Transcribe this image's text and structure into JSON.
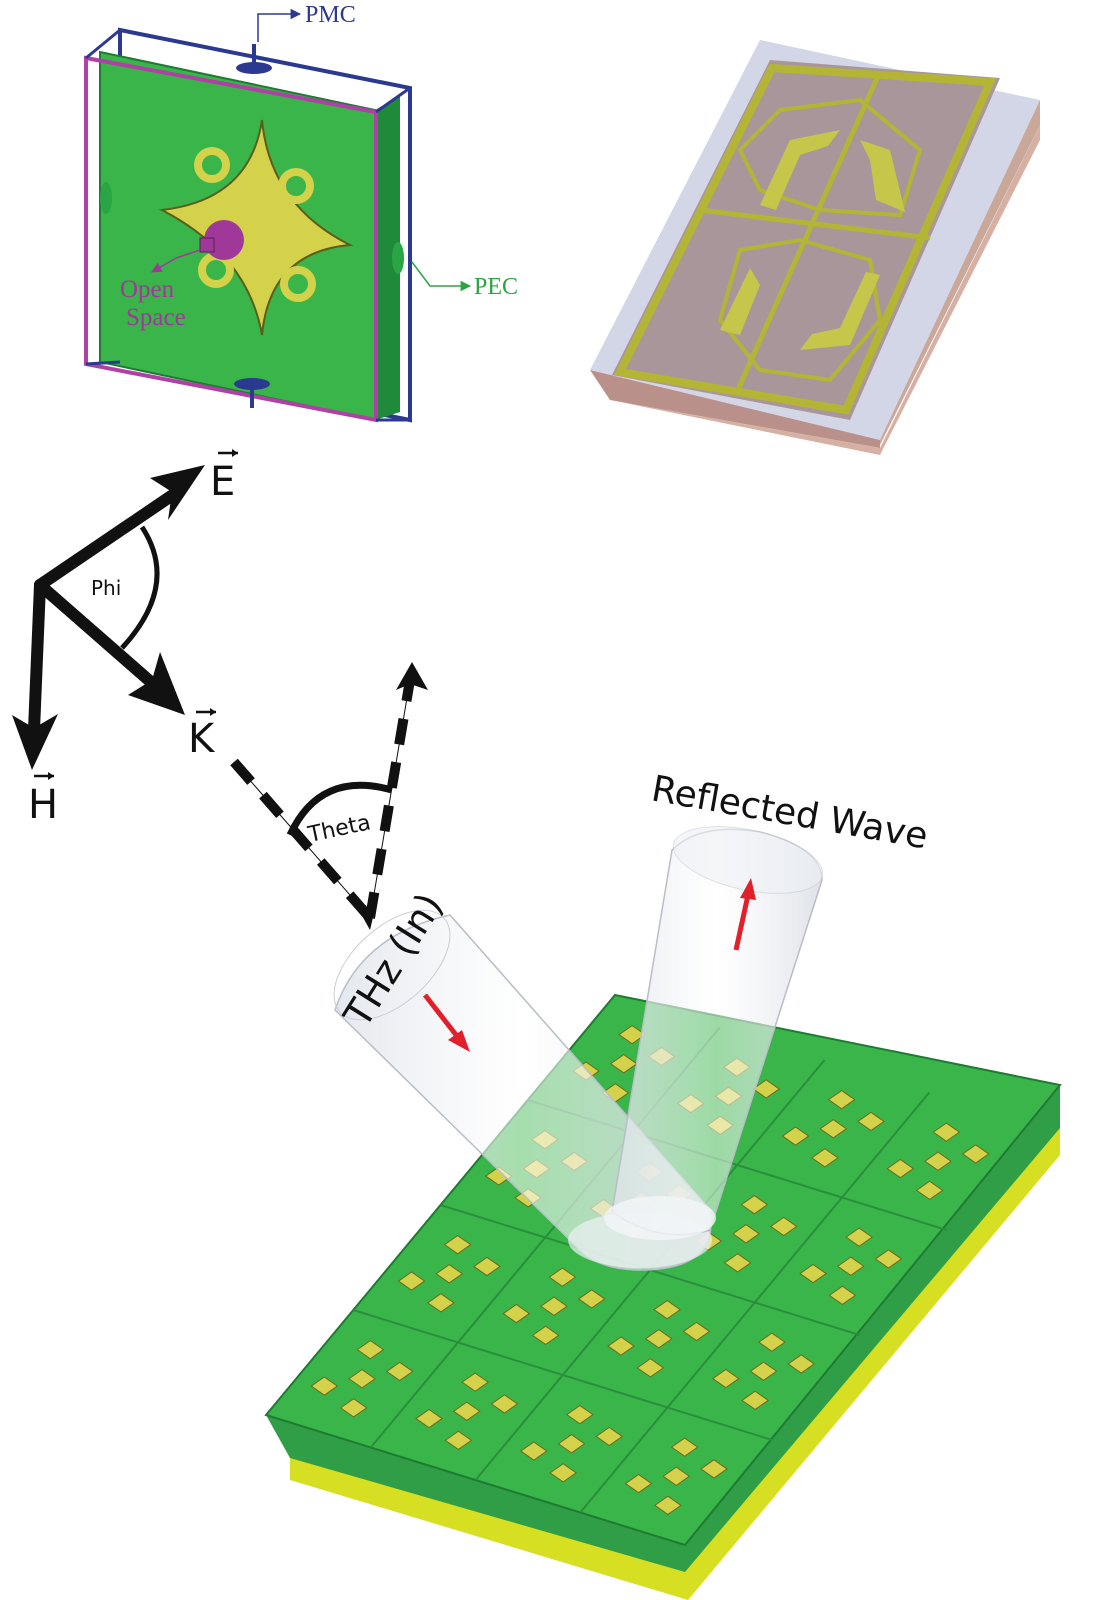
{
  "unit_cell": {
    "pmc_label": "PMC",
    "pec_label": "PEC",
    "open_space_line1": "Open",
    "open_space_line2": "Space"
  },
  "vectors": {
    "e_label": "E",
    "h_label": "H",
    "k_label": "K",
    "phi_label": "Phi",
    "theta_label": "Theta"
  },
  "beams": {
    "incident_label": "THz (In)",
    "reflected_label": "Reflected Wave"
  },
  "colors": {
    "pmc": "#2b3990",
    "pec": "#2aa544",
    "open_space": "#a0389a",
    "substrate_green": "#39b54a",
    "patch_yellow": "#d4d24a",
    "ground_yellow": "#d7df23",
    "arrow_red": "#e0202a"
  }
}
